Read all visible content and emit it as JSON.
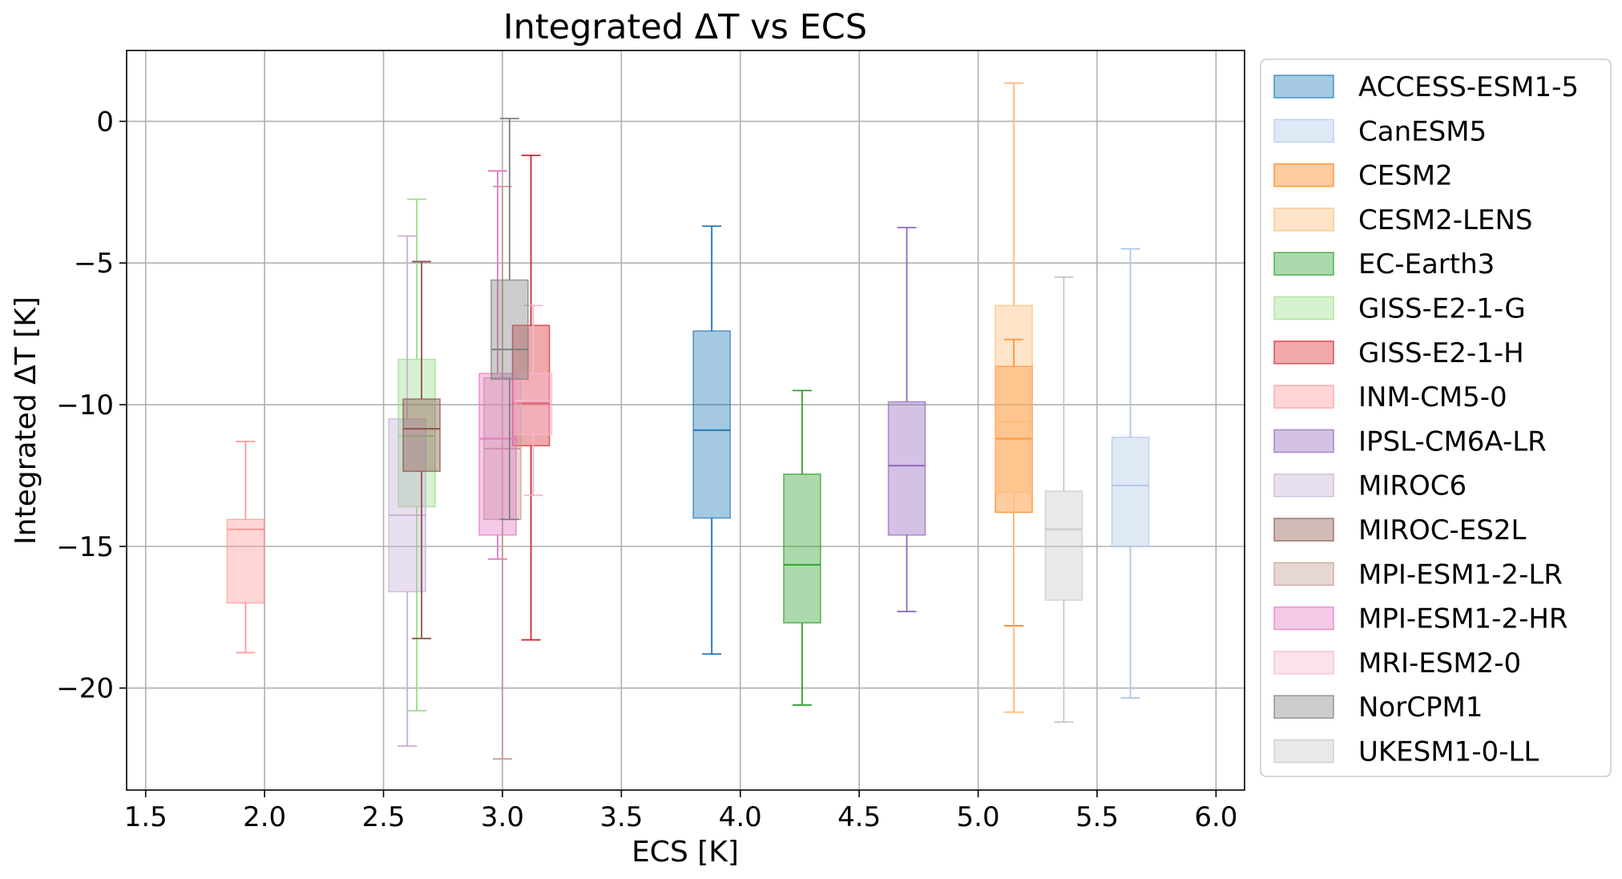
{
  "chart_data": {
    "type": "box",
    "title": "Integrated ΔT vs ECS",
    "xlabel": "ECS [K]",
    "ylabel": "Integrated ΔT [K]",
    "xlim": [
      1.42,
      6.12
    ],
    "ylim": [
      -23.6,
      2.5
    ],
    "xticks": [
      {
        "v": 1.5,
        "label": "1.5"
      },
      {
        "v": 2.0,
        "label": "2.0"
      },
      {
        "v": 2.5,
        "label": "2.5"
      },
      {
        "v": 3.0,
        "label": "3.0"
      },
      {
        "v": 3.5,
        "label": "3.5"
      },
      {
        "v": 4.0,
        "label": "4.0"
      },
      {
        "v": 4.5,
        "label": "4.5"
      },
      {
        "v": 5.0,
        "label": "5.0"
      },
      {
        "v": 5.5,
        "label": "5.5"
      },
      {
        "v": 6.0,
        "label": "6.0"
      }
    ],
    "yticks": [
      {
        "v": 0,
        "label": "0"
      },
      {
        "v": -5,
        "label": "−5"
      },
      {
        "v": -10,
        "label": "−10"
      },
      {
        "v": -15,
        "label": "−15"
      },
      {
        "v": -20,
        "label": "−20"
      }
    ],
    "grid": true,
    "legend_position": "outside-right",
    "series": [
      {
        "name": "ACCESS-ESM1-5",
        "color": "#1f77b4",
        "ecs": 3.88,
        "whislo": -18.8,
        "q1": -14.0,
        "med": -10.9,
        "q3": -7.4,
        "whishi": -3.7
      },
      {
        "name": "CanESM5",
        "color": "#aec7e8",
        "ecs": 5.64,
        "whislo": -20.35,
        "q1": -15.0,
        "med": -12.85,
        "q3": -11.15,
        "whishi": -4.5
      },
      {
        "name": "CESM2",
        "color": "#ff7f0e",
        "ecs": 5.15,
        "whislo": -17.8,
        "q1": -13.8,
        "med": -11.2,
        "q3": -8.65,
        "whishi": -7.7
      },
      {
        "name": "CESM2-LENS",
        "color": "#ffbb78",
        "ecs": 5.15,
        "whislo": -20.85,
        "q1": -13.1,
        "med": -10.6,
        "q3": -6.5,
        "whishi": 1.35
      },
      {
        "name": "EC-Earth3",
        "color": "#2ca02c",
        "ecs": 4.26,
        "whislo": -20.6,
        "q1": -17.7,
        "med": -15.65,
        "q3": -12.45,
        "whishi": -9.5
      },
      {
        "name": "GISS-E2-1-G",
        "color": "#98df8a",
        "ecs": 2.64,
        "whislo": -20.8,
        "q1": -13.6,
        "med": -11.1,
        "q3": -8.4,
        "whishi": -2.75
      },
      {
        "name": "GISS-E2-1-H",
        "color": "#d62728",
        "ecs": 3.12,
        "whislo": -18.3,
        "q1": -11.45,
        "med": -9.95,
        "q3": -7.2,
        "whishi": -1.2
      },
      {
        "name": "INM-CM5-0",
        "color": "#ff9896",
        "ecs": 1.92,
        "whislo": -18.75,
        "q1": -17.0,
        "med": -14.4,
        "q3": -14.05,
        "whishi": -11.3
      },
      {
        "name": "IPSL-CM6A-LR",
        "color": "#9467bd",
        "ecs": 4.7,
        "whislo": -17.3,
        "q1": -14.6,
        "med": -12.15,
        "q3": -9.9,
        "whishi": -3.75
      },
      {
        "name": "MIROC6",
        "color": "#c5b0d5",
        "ecs": 2.6,
        "whislo": -22.05,
        "q1": -16.6,
        "med": -13.9,
        "q3": -10.5,
        "whishi": -4.05
      },
      {
        "name": "MIROC-ES2L",
        "color": "#8c564b",
        "ecs": 2.66,
        "whislo": -18.25,
        "q1": -12.35,
        "med": -10.85,
        "q3": -9.8,
        "whishi": -4.95
      },
      {
        "name": "MPI-ESM1-2-LR",
        "color": "#c49c94",
        "ecs": 3.0,
        "whislo": -22.5,
        "q1": -14.05,
        "med": -11.55,
        "q3": -9.05,
        "whishi": -2.3
      },
      {
        "name": "MPI-ESM1-2-HR",
        "color": "#e377c2",
        "ecs": 2.98,
        "whislo": -15.45,
        "q1": -14.6,
        "med": -11.2,
        "q3": -8.9,
        "whishi": -1.75
      },
      {
        "name": "MRI-ESM2-0",
        "color": "#f7b6d2",
        "ecs": 3.13,
        "whislo": -13.2,
        "q1": -11.05,
        "med": -9.85,
        "q3": -8.9,
        "whishi": -6.5
      },
      {
        "name": "NorCPM1",
        "color": "#7f7f7f",
        "ecs": 3.03,
        "whislo": -14.05,
        "q1": -9.1,
        "med": -8.05,
        "q3": -5.6,
        "whishi": 0.1
      },
      {
        "name": "UKESM1-0-LL",
        "color": "#c7c7c7",
        "ecs": 5.36,
        "whislo": -21.2,
        "q1": -16.9,
        "med": -14.4,
        "q3": -13.05,
        "whishi": -5.5
      }
    ]
  }
}
